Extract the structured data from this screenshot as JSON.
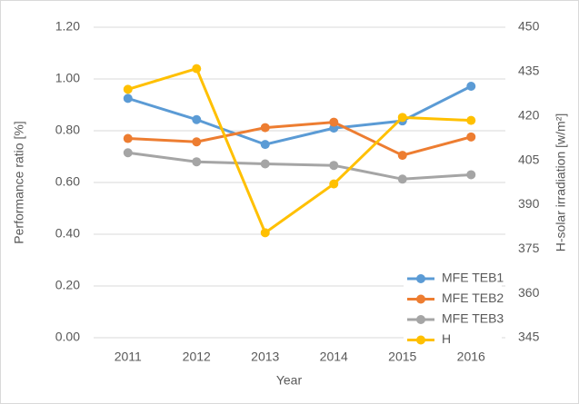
{
  "chart_data": {
    "type": "line",
    "xlabel": "Year",
    "ylabel": "Performance ratio [%]",
    "y2label": "H-solar irradiation [w/m²]",
    "categories": [
      "2011",
      "2012",
      "2013",
      "2014",
      "2015",
      "2016"
    ],
    "series": [
      {
        "name": "MFE TEB1",
        "color": "#5b9bd5",
        "values": [
          0.925,
          0.843,
          0.747,
          0.81,
          0.838,
          0.972
        ]
      },
      {
        "name": "MFE TEB2",
        "color": "#ed7d31",
        "values": [
          0.77,
          0.757,
          0.812,
          0.833,
          0.705,
          0.776
        ]
      },
      {
        "name": "MFE TEB3",
        "color": "#a5a5a5",
        "values": [
          0.715,
          0.68,
          0.672,
          0.666,
          0.613,
          0.63
        ]
      },
      {
        "name": "H",
        "color": "#ffc000",
        "axis": "y2",
        "values": [
          429,
          436,
          380.5,
          397,
          419.5,
          418.5
        ]
      }
    ],
    "ylim": [
      0,
      1.2
    ],
    "yticks": [
      {
        "value": 0,
        "label": "0.00"
      },
      {
        "value": 0.2,
        "label": "0.20"
      },
      {
        "value": 0.4,
        "label": "0.40"
      },
      {
        "value": 0.6,
        "label": "0.60"
      },
      {
        "value": 0.8,
        "label": "0.80"
      },
      {
        "value": 1,
        "label": "1.00"
      },
      {
        "value": 1.2,
        "label": "1.20"
      }
    ],
    "y2lim": [
      345,
      450
    ],
    "y2ticks": [
      345,
      360,
      375,
      390,
      405,
      420,
      435,
      450
    ],
    "grid": true,
    "legend": "lower right"
  }
}
